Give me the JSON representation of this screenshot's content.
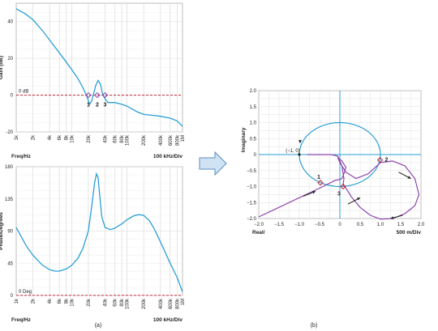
{
  "chart_data": [
    {
      "type": "line",
      "panel": "gain",
      "xscale": "log",
      "xlim": [
        1000,
        1000000
      ],
      "ylim": [
        -20,
        50
      ],
      "yticks": [
        -20,
        0,
        20,
        40
      ],
      "xticks": [
        1000,
        2000,
        4000,
        6000,
        8000,
        10000,
        20000,
        40000,
        60000,
        80000,
        100000,
        200000,
        400000,
        600000,
        800000,
        1000000
      ],
      "xtick_labels": [
        "1k",
        "2k",
        "4k",
        "6k",
        "8k",
        "10k",
        "20k",
        "40k",
        "60k",
        "80k",
        "100k",
        "200k",
        "400k",
        "600k",
        "800k",
        "1M"
      ],
      "ylabel": "Gain (dB)",
      "xlabel": "Freq/Hz",
      "xlabel_right": "100 kHz/Div",
      "grid": true,
      "series": [
        {
          "color": "#2a9fd6",
          "x": [
            1000,
            1500,
            2000,
            3000,
            4000,
            6000,
            8000,
            10000,
            13000,
            16000,
            19000,
            21000,
            23000,
            25000,
            27000,
            30000,
            33000,
            36000,
            40000,
            45000,
            50000,
            60000,
            70000,
            80000,
            100000,
            150000,
            200000,
            300000,
            400000,
            600000,
            800000,
            1000000
          ],
          "values": [
            47,
            44,
            41,
            35,
            30,
            23,
            18,
            14,
            9,
            4,
            -1,
            -5,
            -3,
            1,
            5,
            8,
            6,
            1,
            -2,
            -4,
            -4,
            -4,
            -4.5,
            -5,
            -6,
            -9,
            -10.5,
            -11,
            -11.5,
            -12.5,
            -14,
            -17
          ]
        }
      ],
      "reference_line": {
        "value": 0,
        "label": "0 dB",
        "color": "#c0283a"
      },
      "markers": [
        {
          "label": "1",
          "x": 20000,
          "y": 0
        },
        {
          "label": "2",
          "x": 29000,
          "y": 0
        },
        {
          "label": "3",
          "x": 40000,
          "y": 0
        }
      ]
    },
    {
      "type": "line",
      "panel": "phase",
      "xscale": "log",
      "xlim": [
        1000,
        1000000
      ],
      "ylim": [
        0,
        180
      ],
      "yticks": [
        0,
        45,
        90,
        135,
        180
      ],
      "xticks": [
        1000,
        2000,
        4000,
        6000,
        8000,
        10000,
        20000,
        40000,
        60000,
        80000,
        100000,
        200000,
        400000,
        600000,
        800000,
        1000000
      ],
      "xtick_labels": [
        "1k",
        "2k",
        "4k",
        "6k",
        "8k",
        "10k",
        "20k",
        "40k",
        "60k",
        "80k",
        "100k",
        "200k",
        "400k",
        "600k",
        "800k",
        "1M"
      ],
      "ylabel": "Phase/Degrees",
      "xlabel": "Freq/Hz",
      "xlabel_right": "100 kHz/Div",
      "grid": true,
      "series": [
        {
          "color": "#2a9fd6",
          "x": [
            1000,
            1500,
            2000,
            3000,
            4000,
            5000,
            6000,
            8000,
            10000,
            13000,
            16000,
            20000,
            23000,
            26000,
            28000,
            30000,
            32000,
            35000,
            40000,
            50000,
            60000,
            80000,
            100000,
            130000,
            160000,
            200000,
            250000,
            300000,
            400000,
            600000,
            800000,
            1000000
          ],
          "values": [
            95,
            70,
            56,
            42,
            36,
            34,
            34,
            37,
            42,
            52,
            66,
            90,
            125,
            158,
            170,
            165,
            140,
            110,
            95,
            92,
            94,
            100,
            106,
            111,
            113,
            112,
            105,
            95,
            75,
            45,
            25,
            5
          ]
        }
      ],
      "reference_line": {
        "value": 0,
        "label": "0 Deg",
        "color": "#c0283a"
      }
    },
    {
      "type": "line",
      "panel": "nyquist",
      "xlim": [
        -2,
        2
      ],
      "ylim": [
        -2,
        2
      ],
      "xticks": [
        -2,
        -1.5,
        -1,
        -0.5,
        0,
        0.5,
        1,
        1.5,
        2
      ],
      "yticks": [
        -2,
        -1.5,
        -1,
        -0.5,
        0,
        0.5,
        1,
        1.5,
        2
      ],
      "xtick_labels": [
        "−2.0",
        "−1.5",
        "−1.0",
        "−0.5",
        "0",
        "0.5",
        "1.0",
        "1.5",
        "2.0"
      ],
      "ytick_labels": [
        "−2.0",
        "−1.5",
        "−1.0",
        "−0.5",
        "0",
        "0.5",
        "1.0",
        "1.5",
        "2.0"
      ],
      "ylabel": "Imaginary",
      "xlabel": "Real/",
      "xlabel_right": "500 m/Div",
      "grid": true,
      "unit_circle": {
        "center": [
          0,
          0
        ],
        "radius": 1,
        "color": "#2a9fd6"
      },
      "series": [
        {
          "color": "#8e44ad",
          "x": [
            -2.0,
            -1.5,
            -1.0,
            -0.5,
            -0.1,
            0.0,
            0.05,
            0.1,
            0.15,
            0.05,
            -0.05,
            0.0,
            0.15,
            0.4,
            0.7,
            1.0,
            1.3,
            1.6,
            1.85,
            1.95,
            1.85,
            1.6,
            1.3,
            1.0,
            0.75,
            0.5,
            0.3,
            0.15,
            0.08,
            0.1,
            0.05,
            -0.05,
            -0.2,
            -0.4,
            -0.7,
            -0.8
          ],
          "values": [
            -1.95,
            -1.65,
            -1.35,
            -1.05,
            -0.8,
            -0.78,
            -0.75,
            -0.6,
            -0.4,
            -0.2,
            -0.1,
            -0.25,
            -0.55,
            -0.75,
            -0.6,
            -0.25,
            -0.2,
            -0.35,
            -0.75,
            -1.25,
            -1.6,
            -1.85,
            -2.0,
            -2.02,
            -1.9,
            -1.65,
            -1.35,
            -1.05,
            -0.95,
            -0.75,
            -0.35,
            -0.05,
            0.0,
            0.0,
            0.0,
            0.0
          ]
        }
      ],
      "critical_point": {
        "label": "(−1, 0)",
        "x": -1,
        "y": 0
      },
      "markers": [
        {
          "label": "1",
          "x": -0.48,
          "y": -0.88
        },
        {
          "label": "2",
          "x": 0.99,
          "y": -0.17
        },
        {
          "label": "3",
          "x": 0.08,
          "y": -1.0
        }
      ]
    }
  ],
  "captions": {
    "left": "(a)",
    "right": "(b)"
  },
  "arrow_color": "#cfe3f5"
}
